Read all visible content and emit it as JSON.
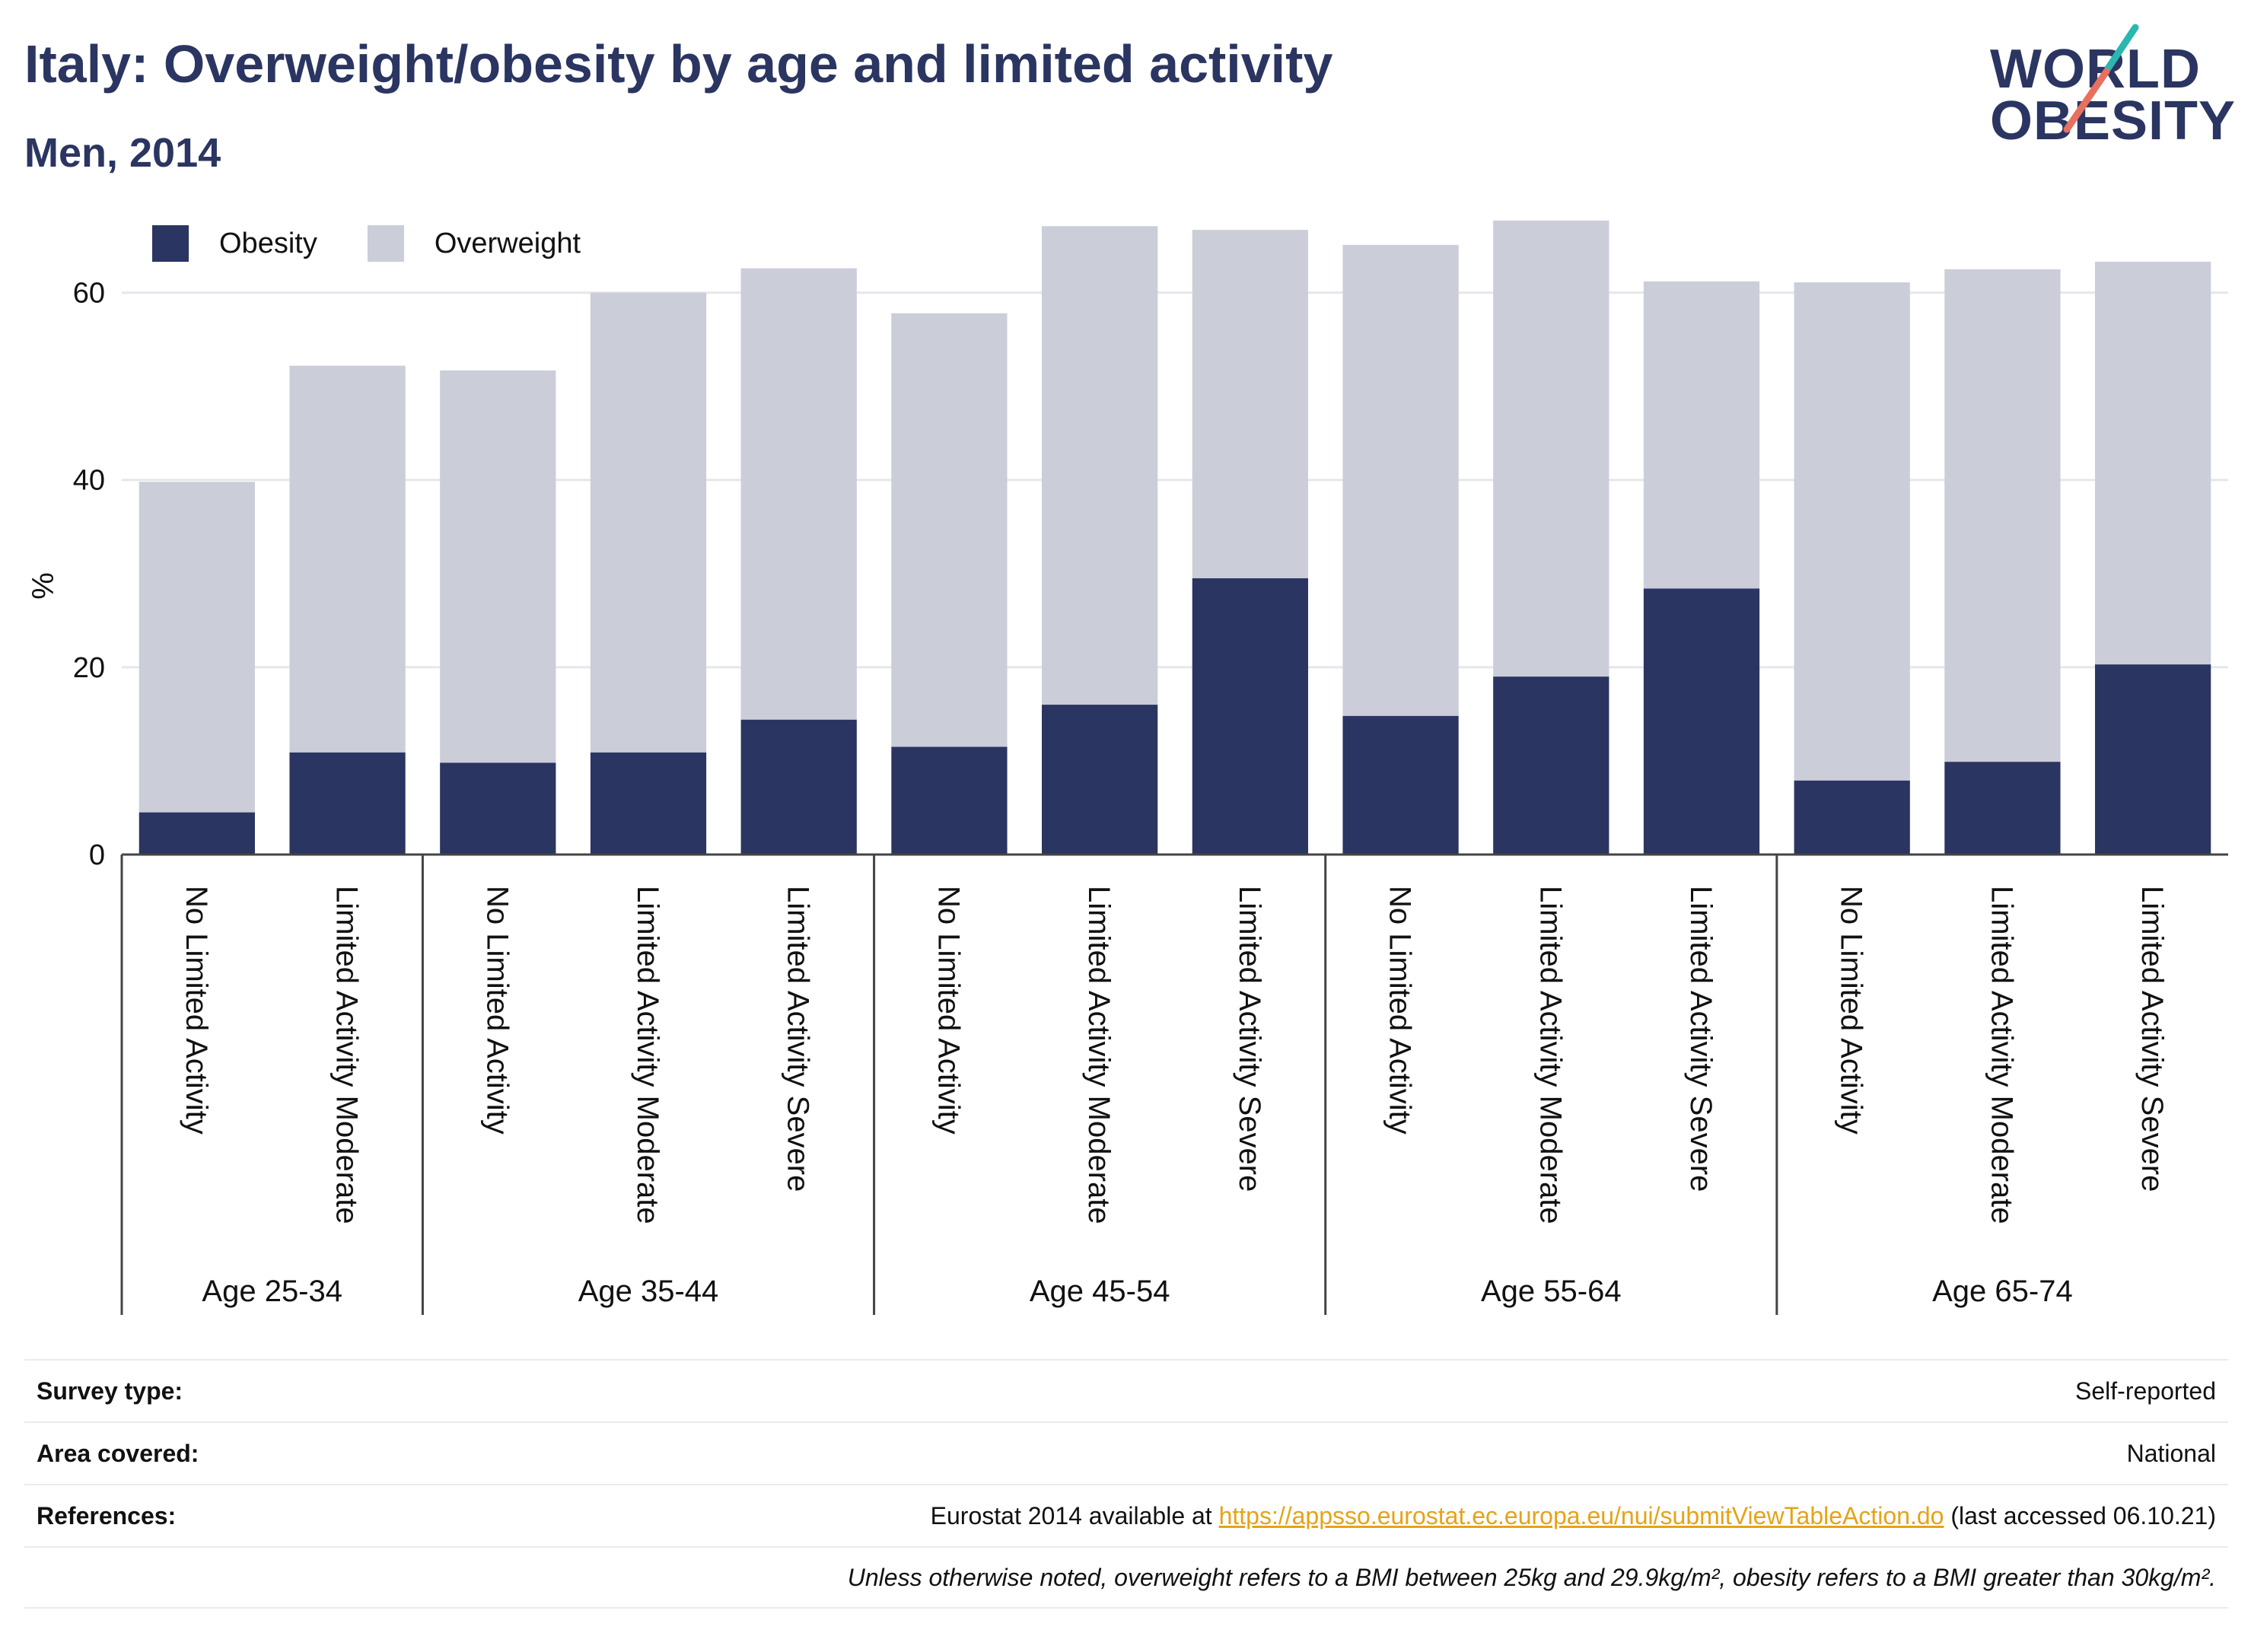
{
  "header": {
    "title": "Italy: Overweight/obesity by age and limited activity",
    "subtitle": "Men, 2014"
  },
  "logo": {
    "line1": "WORLD",
    "line2": "OBESITY",
    "accent_teal": "#2bb6b0",
    "accent_coral": "#e8705f"
  },
  "colors": {
    "obesity": "#2b3561",
    "overweight": "#cbcdd9",
    "axis": "#444444",
    "grid": "#e6e7ec"
  },
  "chart_data": {
    "type": "bar",
    "stacked": true,
    "ylabel": "%",
    "ylim": [
      0,
      75
    ],
    "yticks": [
      0,
      20,
      40,
      60
    ],
    "grid": true,
    "legend_position": "top-left",
    "categories": [
      "No Limited Activity",
      "Limited Activity Moderate",
      "No Limited Activity",
      "Limited Activity Moderate",
      "Limited Activity Severe",
      "No Limited Activity",
      "Limited Activity Moderate",
      "Limited Activity Severe",
      "No Limited Activity",
      "Limited Activity Moderate",
      "Limited Activity Severe",
      "No Limited Activity",
      "Limited Activity Moderate",
      "Limited Activity Severe"
    ],
    "groups": [
      {
        "label": "Age 25-34",
        "count": 2
      },
      {
        "label": "Age 35-44",
        "count": 3
      },
      {
        "label": "Age 45-54",
        "count": 3
      },
      {
        "label": "Age 55-64",
        "count": 3
      },
      {
        "label": "Age 65-74",
        "count": 3
      }
    ],
    "series": [
      {
        "name": "Obesity",
        "values": [
          4.5,
          10.9,
          9.8,
          10.9,
          14.4,
          11.5,
          16.0,
          29.5,
          14.8,
          19.0,
          28.4,
          7.9,
          9.9,
          20.3
        ]
      },
      {
        "name": "Overweight",
        "values": [
          35.3,
          41.3,
          41.9,
          49.1,
          48.2,
          46.3,
          51.1,
          37.2,
          50.3,
          48.7,
          32.8,
          53.2,
          52.6,
          43.0
        ]
      }
    ]
  },
  "info": {
    "survey_type_label": "Survey type:",
    "survey_type_value": "Self-reported",
    "area_label": "Area covered:",
    "area_value": "National",
    "references_label": "References:",
    "references_prefix": "Eurostat 2014 available at ",
    "references_link": "https://appsso.eurostat.ec.europa.eu/nui/submitViewTableAction.do",
    "references_suffix": " (last accessed 06.10.21)",
    "note": "Unless otherwise noted, overweight refers to a BMI between 25kg and 29.9kg/m², obesity refers to a BMI greater than 30kg/m²."
  }
}
